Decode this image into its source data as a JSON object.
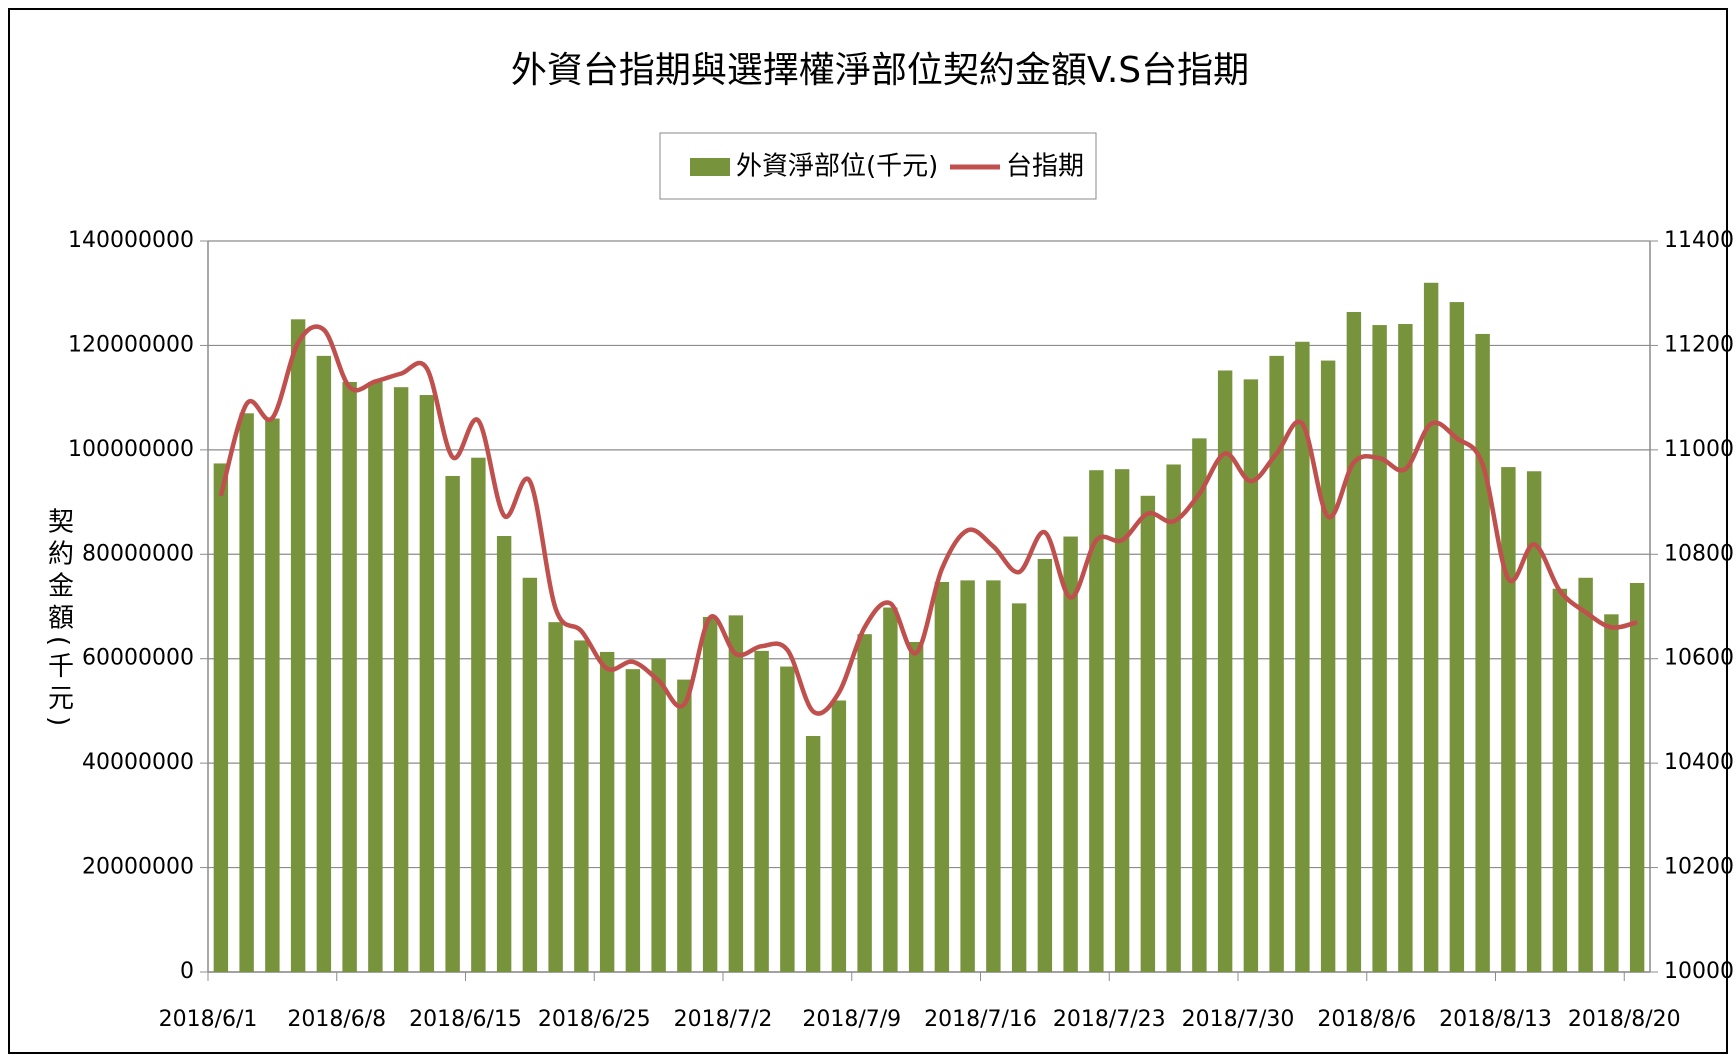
{
  "chart_data": {
    "type": "combo",
    "title": "外資台指期與選擇權淨部位契約金額V.S台指期",
    "y_label": "契約金額(千元)",
    "categories": [
      "2018/6/1",
      null,
      null,
      null,
      null,
      "2018/6/8",
      null,
      null,
      null,
      null,
      "2018/6/15",
      null,
      null,
      null,
      null,
      "2018/6/25",
      null,
      null,
      null,
      null,
      "2018/7/2",
      null,
      null,
      null,
      null,
      "2018/7/9",
      null,
      null,
      null,
      null,
      "2018/7/16",
      null,
      null,
      null,
      null,
      "2018/7/23",
      null,
      null,
      null,
      null,
      "2018/7/30",
      null,
      null,
      null,
      null,
      "2018/8/6",
      null,
      null,
      null,
      null,
      "2018/8/13",
      null,
      null,
      null,
      null,
      "2018/8/20"
    ],
    "series": [
      {
        "name": "外資淨部位(千元)",
        "type": "bar",
        "color": "#77933c",
        "values": [
          97400000,
          107000000,
          106000000,
          125000000,
          118000000,
          113000000,
          113000000,
          112000000,
          110500000,
          95000000,
          98500000,
          83500000,
          75500000,
          67000000,
          63500000,
          61300000,
          58000000,
          60000000,
          56000000,
          68000000,
          68300000,
          61500000,
          58500000,
          45200000,
          52000000,
          64700000,
          69800000,
          63200000,
          74700000,
          75000000,
          75000000,
          70600000,
          79100000,
          83400000,
          96100000,
          96300000,
          91200000,
          97200000,
          102200000,
          115200000,
          113500000,
          118000000,
          120700000,
          117100000,
          126400000,
          123900000,
          124100000,
          132000000,
          128300000,
          122200000,
          96700000,
          95900000,
          73400000,
          75500000,
          68500000,
          74500000
        ]
      },
      {
        "name": "台指期",
        "type": "line",
        "axis": "y2",
        "color": "#c0504d",
        "values": [
          10912,
          11088,
          11061,
          11205,
          11230,
          11120,
          11131,
          11146,
          11156,
          10986,
          11056,
          10874,
          10940,
          10696,
          10653,
          10581,
          10594,
          10558,
          10513,
          10679,
          10609,
          10624,
          10617,
          10499,
          10535,
          10660,
          10706,
          10611,
          10772,
          10846,
          10815,
          10766,
          10842,
          10717,
          10827,
          10827,
          10878,
          10863,
          10916,
          10993,
          10940,
          10993,
          11050,
          10872,
          10976,
          10984,
          10963,
          11050,
          11022,
          10972,
          10753,
          10819,
          10730,
          10689,
          10660,
          10670
        ]
      }
    ],
    "ylim": [
      0,
      140000000
    ],
    "yticks": [
      0,
      20000000,
      40000000,
      60000000,
      80000000,
      100000000,
      120000000,
      140000000
    ],
    "y2lim": [
      10000,
      11400
    ],
    "y2ticks": [
      10000,
      10200,
      10400,
      10600,
      10800,
      11000,
      11200,
      11400
    ],
    "grid": true,
    "legend": "top"
  }
}
